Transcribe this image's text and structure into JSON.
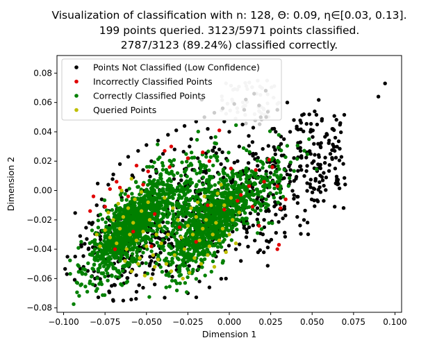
{
  "chart_data": {
    "type": "scatter",
    "title_lines": [
      "Visualization of classification with n: 128, Θ: 0.09, η∈[0.03, 0.13].",
      "199 points queried. 3123/5971 points classified.",
      "2787/3123 (89.24%) classified correctly."
    ],
    "xlabel": "Dimension 1",
    "ylabel": "Dimension 2",
    "xlim": [
      -0.104,
      0.104
    ],
    "ylim": [
      -0.083,
      0.092
    ],
    "xticks": [
      -0.1,
      -0.075,
      -0.05,
      -0.025,
      0.0,
      0.025,
      0.05,
      0.075,
      0.1
    ],
    "xtick_labels": [
      "−0.100",
      "−0.075",
      "−0.050",
      "−0.025",
      "0.000",
      "0.025",
      "0.050",
      "0.075",
      "0.100"
    ],
    "yticks": [
      -0.08,
      -0.06,
      -0.04,
      -0.02,
      0.0,
      0.02,
      0.04,
      0.06,
      0.08
    ],
    "ytick_labels": [
      "−0.08",
      "−0.06",
      "−0.04",
      "−0.02",
      "0.00",
      "0.02",
      "0.04",
      "0.06",
      "0.08"
    ],
    "grid": false,
    "legend_position": "upper-left",
    "series": [
      {
        "name": "Points Not Classified (Low Confidence)",
        "color": "#000000",
        "points": [
          [
            -0.098,
            -0.057
          ],
          [
            -0.093,
            -0.045
          ],
          [
            -0.09,
            -0.031
          ],
          [
            -0.088,
            -0.052
          ],
          [
            -0.085,
            -0.04
          ],
          [
            -0.083,
            -0.023
          ],
          [
            -0.081,
            -0.06
          ],
          [
            -0.079,
            -0.017
          ],
          [
            -0.077,
            -0.006
          ],
          [
            -0.075,
            -0.047
          ],
          [
            -0.073,
            0.004
          ],
          [
            -0.071,
            -0.065
          ],
          [
            -0.07,
            0.011
          ],
          [
            -0.068,
            -0.03
          ],
          [
            -0.066,
            0.018
          ],
          [
            -0.064,
            -0.075
          ],
          [
            -0.063,
            -0.055
          ],
          [
            -0.061,
            0.023
          ],
          [
            -0.06,
            -0.01
          ],
          [
            -0.058,
            0.009
          ],
          [
            -0.056,
            -0.069
          ],
          [
            -0.055,
            0.027
          ],
          [
            -0.053,
            -0.045
          ],
          [
            -0.052,
            0.014
          ],
          [
            -0.05,
            0.031
          ],
          [
            -0.048,
            -0.025
          ],
          [
            -0.047,
            0.02
          ],
          [
            -0.045,
            -0.064
          ],
          [
            -0.043,
            0.034
          ],
          [
            -0.042,
            -0.005
          ],
          [
            -0.04,
            0.025
          ],
          [
            -0.039,
            -0.073
          ],
          [
            -0.037,
            0.038
          ],
          [
            -0.035,
            -0.038
          ],
          [
            -0.034,
            0.017
          ],
          [
            -0.032,
            0.041
          ],
          [
            -0.03,
            -0.058
          ],
          [
            -0.029,
            0.007
          ],
          [
            -0.027,
            0.044
          ],
          [
            -0.025,
            -0.07
          ],
          [
            -0.024,
            0.03
          ],
          [
            -0.022,
            -0.015
          ],
          [
            -0.02,
            0.047
          ],
          [
            -0.019,
            0.022
          ],
          [
            -0.017,
            -0.052
          ],
          [
            -0.015,
            0.05
          ],
          [
            -0.014,
            0.012
          ],
          [
            -0.012,
            -0.066
          ],
          [
            -0.011,
            0.036
          ],
          [
            -0.009,
            0.053
          ],
          [
            -0.007,
            -0.032
          ],
          [
            -0.006,
            0.028
          ],
          [
            -0.004,
            0.056
          ],
          [
            -0.002,
            -0.06
          ],
          [
            0.0,
            0.04
          ],
          [
            0.001,
            -0.008
          ],
          [
            0.003,
            0.059
          ],
          [
            0.005,
            0.02
          ],
          [
            0.007,
            -0.048
          ],
          [
            0.008,
            0.045
          ],
          [
            0.01,
            0.062
          ],
          [
            0.012,
            -0.025
          ],
          [
            0.014,
            0.033
          ],
          [
            0.015,
            0.066
          ],
          [
            0.017,
            -0.012
          ],
          [
            0.019,
            0.05
          ],
          [
            0.02,
            0.008
          ],
          [
            0.022,
            0.068
          ],
          [
            0.024,
            -0.035
          ],
          [
            0.026,
            0.042
          ],
          [
            0.027,
            0.021
          ],
          [
            0.029,
            0.055
          ],
          [
            0.031,
            -0.005
          ],
          [
            0.033,
            0.035
          ],
          [
            0.035,
            0.06
          ],
          [
            0.037,
            0.014
          ],
          [
            0.039,
            0.048
          ],
          [
            0.041,
            -0.018
          ],
          [
            0.043,
            0.027
          ],
          [
            0.045,
            0.052
          ],
          [
            0.047,
            0.005
          ],
          [
            0.049,
            0.04
          ],
          [
            0.051,
            0.02
          ],
          [
            0.053,
            0.045
          ],
          [
            0.055,
            0.03
          ],
          [
            0.057,
            0.012
          ],
          [
            0.059,
            0.038
          ],
          [
            0.061,
            0.025
          ],
          [
            0.064,
            0.036
          ],
          [
            0.067,
            0.046
          ],
          [
            0.09,
            0.064
          ],
          [
            0.094,
            0.073
          ],
          [
            -0.086,
            -0.033
          ],
          [
            -0.08,
            -0.01
          ],
          [
            -0.074,
            -0.038
          ],
          [
            -0.069,
            -0.02
          ],
          [
            -0.062,
            0.0
          ],
          [
            -0.057,
            -0.035
          ],
          [
            -0.051,
            -0.012
          ],
          [
            -0.046,
            0.005
          ],
          [
            -0.041,
            -0.028
          ],
          [
            -0.036,
            0.002
          ],
          [
            -0.031,
            -0.018
          ],
          [
            -0.026,
            0.015
          ],
          [
            -0.021,
            -0.04
          ],
          [
            -0.016,
            0.005
          ],
          [
            -0.01,
            -0.02
          ],
          [
            -0.005,
            0.018
          ],
          [
            0.002,
            -0.028
          ],
          [
            0.006,
            0.03
          ],
          [
            0.011,
            0.0
          ],
          [
            0.016,
            0.025
          ],
          [
            0.021,
            -0.02
          ],
          [
            0.025,
            0.012
          ],
          [
            0.03,
            0.03
          ],
          [
            -0.047,
            -0.048
          ],
          [
            -0.038,
            -0.055
          ],
          [
            -0.018,
            -0.062
          ],
          [
            -0.008,
            -0.045
          ],
          [
            0.004,
            -0.04
          ],
          [
            -0.065,
            -0.058
          ],
          [
            -0.054,
            -0.02
          ],
          [
            -0.044,
            0.012
          ],
          [
            -0.033,
            0.028
          ],
          [
            -0.023,
            0.035
          ],
          [
            -0.013,
            0.042
          ],
          [
            -0.003,
            0.047
          ],
          [
            0.009,
            0.055
          ],
          [
            0.018,
            0.058
          ],
          [
            0.028,
            0.04
          ]
        ]
      },
      {
        "name": "Incorrectly Classified Points",
        "color": "#e00000",
        "points": [
          [
            -0.084,
            -0.014
          ],
          [
            -0.082,
            -0.004
          ],
          [
            -0.075,
            -0.011
          ],
          [
            -0.068,
            0.006
          ],
          [
            -0.066,
            0.002
          ],
          [
            -0.061,
            -0.004
          ],
          [
            -0.056,
            0.017
          ],
          [
            -0.052,
            0.004
          ],
          [
            -0.049,
            0.013
          ],
          [
            -0.039,
            0.027
          ],
          [
            -0.036,
            0.016
          ],
          [
            -0.025,
            0.022
          ],
          [
            -0.016,
            0.026
          ],
          [
            -0.012,
            0.02
          ],
          [
            -0.006,
            0.041
          ],
          [
            0.005,
            -0.007
          ],
          [
            0.007,
            -0.003
          ],
          [
            0.014,
            -0.011
          ],
          [
            0.016,
            0.014
          ],
          [
            0.021,
            0.006
          ],
          [
            0.026,
            0.016
          ],
          [
            0.029,
            0.003
          ],
          [
            0.031,
            -0.012
          ],
          [
            0.034,
            -0.006
          ],
          [
            0.029,
            -0.04
          ],
          [
            0.03,
            -0.037
          ],
          [
            -0.045,
            -0.016
          ],
          [
            -0.035,
            0.03
          ],
          [
            -0.003,
            -0.013
          ],
          [
            0.001,
            0.015
          ],
          [
            -0.069,
            -0.04
          ],
          [
            -0.058,
            -0.028
          ],
          [
            -0.047,
            -0.038
          ],
          [
            -0.02,
            -0.035
          ],
          [
            0.012,
            0.003
          ],
          [
            0.018,
            -0.024
          ],
          [
            0.024,
            0.021
          ],
          [
            -0.03,
            -0.025
          ],
          [
            -0.013,
            -0.01
          ],
          [
            -0.072,
            0.001
          ]
        ]
      },
      {
        "name": "Correctly Classified Points",
        "color": "#008000",
        "points": [],
        "generated_clusters": true
      },
      {
        "name": "Queried Points",
        "color": "#bfbf00",
        "points": [
          [
            -0.075,
            -0.027
          ],
          [
            -0.072,
            -0.032
          ],
          [
            -0.07,
            -0.02
          ],
          [
            -0.068,
            -0.036
          ],
          [
            -0.066,
            -0.026
          ],
          [
            -0.064,
            -0.018
          ],
          [
            -0.062,
            -0.04
          ],
          [
            -0.06,
            -0.03
          ],
          [
            -0.058,
            -0.022
          ],
          [
            -0.056,
            -0.034
          ],
          [
            -0.054,
            -0.046
          ],
          [
            -0.052,
            -0.028
          ],
          [
            -0.05,
            -0.038
          ],
          [
            -0.048,
            -0.02
          ],
          [
            -0.046,
            -0.044
          ],
          [
            -0.044,
            -0.03
          ],
          [
            -0.073,
            -0.015
          ],
          [
            -0.067,
            -0.009
          ],
          [
            -0.061,
            -0.012
          ],
          [
            -0.057,
            -0.006
          ],
          [
            -0.053,
            -0.014
          ],
          [
            -0.049,
            -0.008
          ],
          [
            -0.045,
            -0.052
          ],
          [
            -0.041,
            -0.036
          ],
          [
            -0.078,
            -0.038
          ],
          [
            -0.08,
            -0.03
          ],
          [
            -0.063,
            -0.048
          ],
          [
            -0.059,
            -0.055
          ],
          [
            -0.055,
            -0.05
          ],
          [
            -0.051,
            -0.058
          ],
          [
            -0.047,
            -0.06
          ],
          [
            -0.043,
            -0.047
          ],
          [
            -0.065,
            0.0
          ],
          [
            -0.059,
            0.008
          ],
          [
            -0.053,
            -0.001
          ],
          [
            -0.025,
            -0.024
          ],
          [
            -0.022,
            -0.03
          ],
          [
            -0.02,
            -0.018
          ],
          [
            -0.018,
            -0.034
          ],
          [
            -0.016,
            -0.026
          ],
          [
            -0.014,
            -0.02
          ],
          [
            -0.012,
            -0.038
          ],
          [
            -0.01,
            -0.03
          ],
          [
            -0.008,
            -0.022
          ],
          [
            -0.006,
            -0.034
          ],
          [
            -0.004,
            -0.026
          ],
          [
            -0.002,
            -0.042
          ],
          [
            0.0,
            -0.03
          ],
          [
            0.002,
            -0.02
          ],
          [
            -0.023,
            -0.012
          ],
          [
            -0.019,
            -0.008
          ],
          [
            -0.015,
            -0.004
          ],
          [
            -0.011,
            -0.01
          ],
          [
            -0.007,
            -0.002
          ],
          [
            -0.003,
            -0.01
          ],
          [
            0.004,
            -0.036
          ],
          [
            -0.027,
            -0.04
          ],
          [
            -0.021,
            -0.046
          ],
          [
            -0.017,
            -0.05
          ],
          [
            -0.013,
            -0.044
          ],
          [
            -0.009,
            -0.052
          ],
          [
            -0.029,
            -0.032
          ],
          [
            -0.005,
            0.004
          ],
          [
            0.001,
            -0.005
          ],
          [
            -0.031,
            -0.02
          ],
          [
            -0.035,
            -0.055
          ],
          [
            -0.038,
            -0.05
          ],
          [
            -0.033,
            -0.044
          ],
          [
            -0.024,
            -0.056
          ],
          [
            -0.028,
            -0.06
          ],
          [
            -0.042,
            -0.024
          ],
          [
            -0.037,
            -0.03
          ],
          [
            -0.034,
            -0.012
          ],
          [
            -0.039,
            -0.005
          ],
          [
            0.006,
            -0.015
          ]
        ]
      }
    ]
  }
}
